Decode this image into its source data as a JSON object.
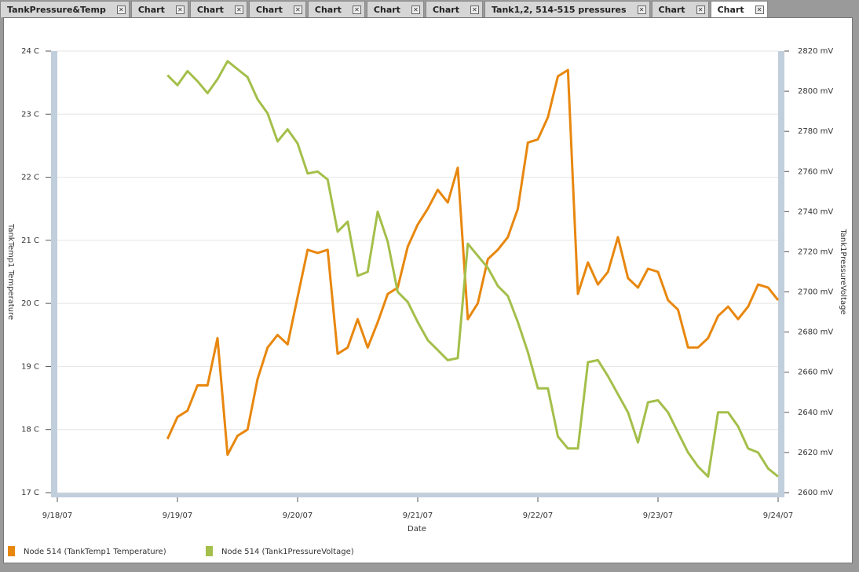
{
  "tabs": [
    "TankPressure&Temp",
    "Chart",
    "Chart",
    "Chart",
    "Chart",
    "Chart",
    "Chart",
    "Tank1,2, 514-515 pressures",
    "Chart",
    "Chart"
  ],
  "chart_data": {
    "type": "line",
    "xlabel": "Date",
    "ylabel": "TankTemp1 Temperature",
    "y2label": "Tank1PressureVoltage",
    "x": [
      "2007-09-18T22:00",
      "2007-09-19T00:00",
      "2007-09-19T02:00",
      "2007-09-19T04:00",
      "2007-09-19T06:00",
      "2007-09-19T08:00",
      "2007-09-19T10:00",
      "2007-09-19T12:00",
      "2007-09-19T14:00",
      "2007-09-19T16:00",
      "2007-09-19T18:00",
      "2007-09-19T20:00",
      "2007-09-19T22:00",
      "2007-09-20T00:00",
      "2007-09-20T02:00",
      "2007-09-20T04:00",
      "2007-09-20T06:00",
      "2007-09-20T08:00",
      "2007-09-20T10:00",
      "2007-09-20T12:00",
      "2007-09-20T14:00",
      "2007-09-20T16:00",
      "2007-09-20T18:00",
      "2007-09-20T20:00",
      "2007-09-20T22:00",
      "2007-09-21T00:00",
      "2007-09-21T02:00",
      "2007-09-21T04:00",
      "2007-09-21T06:00",
      "2007-09-21T08:00",
      "2007-09-21T10:00",
      "2007-09-21T12:00",
      "2007-09-21T14:00",
      "2007-09-21T16:00",
      "2007-09-21T18:00",
      "2007-09-21T20:00",
      "2007-09-21T22:00",
      "2007-09-22T00:00",
      "2007-09-22T02:00",
      "2007-09-22T04:00",
      "2007-09-22T06:00",
      "2007-09-22T08:00",
      "2007-09-22T10:00",
      "2007-09-22T12:00",
      "2007-09-22T14:00",
      "2007-09-22T16:00",
      "2007-09-22T18:00",
      "2007-09-22T20:00",
      "2007-09-22T22:00",
      "2007-09-23T00:00",
      "2007-09-23T02:00",
      "2007-09-23T04:00",
      "2007-09-23T06:00",
      "2007-09-23T08:00",
      "2007-09-23T10:00",
      "2007-09-23T12:00",
      "2007-09-23T14:00",
      "2007-09-23T16:00",
      "2007-09-23T18:00",
      "2007-09-23T20:00",
      "2007-09-23T22:00",
      "2007-09-24T00:00"
    ],
    "series": [
      {
        "name": "Node 514 (TankTemp1 Temperature)",
        "color": "#e8870e",
        "values": [
          17.85,
          18.2,
          18.3,
          18.7,
          18.7,
          19.45,
          17.6,
          17.9,
          18.0,
          18.8,
          19.3,
          19.5,
          19.35,
          20.1,
          20.85,
          20.8,
          20.85,
          19.2,
          19.3,
          19.75,
          19.3,
          19.7,
          20.15,
          20.25,
          20.9,
          21.25,
          21.5,
          21.8,
          21.6,
          22.15,
          19.75,
          20.0,
          20.7,
          20.85,
          21.05,
          21.5,
          22.55,
          22.6,
          22.95,
          23.6,
          23.7,
          20.15,
          20.65,
          20.3,
          20.5,
          21.05,
          20.4,
          20.25,
          20.55,
          20.5,
          20.05,
          19.9,
          19.3,
          19.3,
          19.45,
          19.8,
          19.95,
          19.75,
          19.95,
          20.3,
          20.25,
          20.05
        ]
      },
      {
        "name": "Node 514 (Tank1PressureVoltage)",
        "color": "#a4bf4a",
        "axis": "y2",
        "values": [
          2808,
          2803,
          2810,
          2805,
          2799,
          2806,
          2815,
          2811,
          2807,
          2796,
          2789,
          2775,
          2781,
          2774,
          2759,
          2760,
          2756,
          2730,
          2735,
          2708,
          2710,
          2740,
          2725,
          2700,
          2695,
          2685,
          2676,
          2671,
          2666,
          2667,
          2724,
          2718,
          2712,
          2703,
          2698,
          2685,
          2670,
          2652,
          2652,
          2628,
          2622,
          2622,
          2665,
          2666,
          2658,
          2649,
          2640,
          2625,
          2645,
          2646,
          2640,
          2630,
          2620,
          2613,
          2608,
          2640,
          2640,
          2633,
          2622,
          2620,
          2612,
          2608
        ]
      }
    ],
    "xlim": [
      "2007-09-18T00:00",
      "2007-09-24T00:00"
    ],
    "xticks": [
      {
        "value": "2007-09-18T00:00",
        "label": "9/18/07"
      },
      {
        "value": "2007-09-19T00:00",
        "label": "9/19/07"
      },
      {
        "value": "2007-09-20T00:00",
        "label": "9/20/07"
      },
      {
        "value": "2007-09-21T00:00",
        "label": "9/21/07"
      },
      {
        "value": "2007-09-22T00:00",
        "label": "9/22/07"
      },
      {
        "value": "2007-09-23T00:00",
        "label": "9/23/07"
      },
      {
        "value": "2007-09-24T00:00",
        "label": "9/24/07"
      }
    ],
    "ylim": [
      17,
      24
    ],
    "yticks": [
      {
        "value": 17,
        "label": "17 C"
      },
      {
        "value": 18,
        "label": "18 C"
      },
      {
        "value": 19,
        "label": "19 C"
      },
      {
        "value": 20,
        "label": "20 C"
      },
      {
        "value": 21,
        "label": "21 C"
      },
      {
        "value": 22,
        "label": "22 C"
      },
      {
        "value": 23,
        "label": "23 C"
      },
      {
        "value": 24,
        "label": "24 C"
      }
    ],
    "y2lim": [
      2600,
      2820
    ],
    "y2ticks": [
      {
        "value": 2600,
        "label": "2600 mV"
      },
      {
        "value": 2620,
        "label": "2620 mV"
      },
      {
        "value": 2640,
        "label": "2640 mV"
      },
      {
        "value": 2660,
        "label": "2660 mV"
      },
      {
        "value": 2680,
        "label": "2680 mV"
      },
      {
        "value": 2700,
        "label": "2700 mV"
      },
      {
        "value": 2720,
        "label": "2720 mV"
      },
      {
        "value": 2740,
        "label": "2740 mV"
      },
      {
        "value": 2760,
        "label": "2760 mV"
      },
      {
        "value": 2780,
        "label": "2780 mV"
      },
      {
        "value": 2800,
        "label": "2800 mV"
      },
      {
        "value": 2820,
        "label": "2820 mV"
      }
    ],
    "grid": true
  }
}
